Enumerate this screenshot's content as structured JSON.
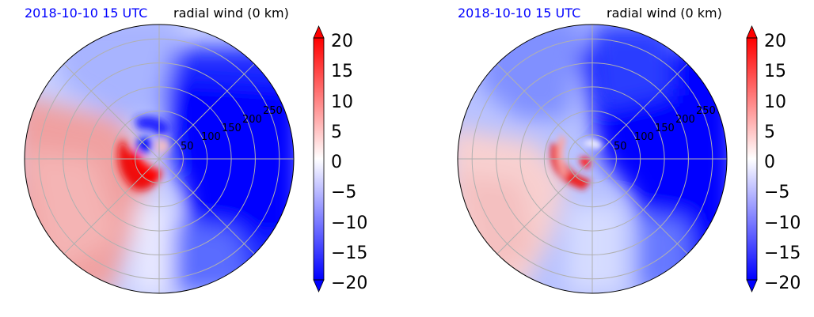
{
  "chart_data": [
    {
      "type": "heatmap",
      "title_left": "2018-10-10 15 UTC",
      "title_right": "radial wind (0 km)",
      "projection": "polar",
      "radial_ticks": [
        "50",
        "100",
        "150",
        "200",
        "250"
      ],
      "radial_range": [
        0,
        280
      ],
      "colorbar_ticks": [
        "−20",
        "−15",
        "−10",
        "−5",
        "0",
        "5",
        "10",
        "15",
        "20"
      ],
      "colorbar_range": [
        -20,
        20
      ],
      "colormap": [
        "#0000ff",
        "#ffffff",
        "#ff0000"
      ],
      "grid": true
    },
    {
      "type": "heatmap",
      "title_left": "2018-10-10 15 UTC",
      "title_right": "radial wind (0 km)",
      "projection": "polar",
      "radial_ticks": [
        "50",
        "100",
        "150",
        "200",
        "250"
      ],
      "radial_range": [
        0,
        280
      ],
      "colorbar_ticks": [
        "−20",
        "−15",
        "−10",
        "−5",
        "0",
        "5",
        "10",
        "15",
        "20"
      ],
      "colorbar_range": [
        -20,
        20
      ],
      "colormap": [
        "#0000ff",
        "#ffffff",
        "#ff0000"
      ],
      "grid": true
    }
  ]
}
